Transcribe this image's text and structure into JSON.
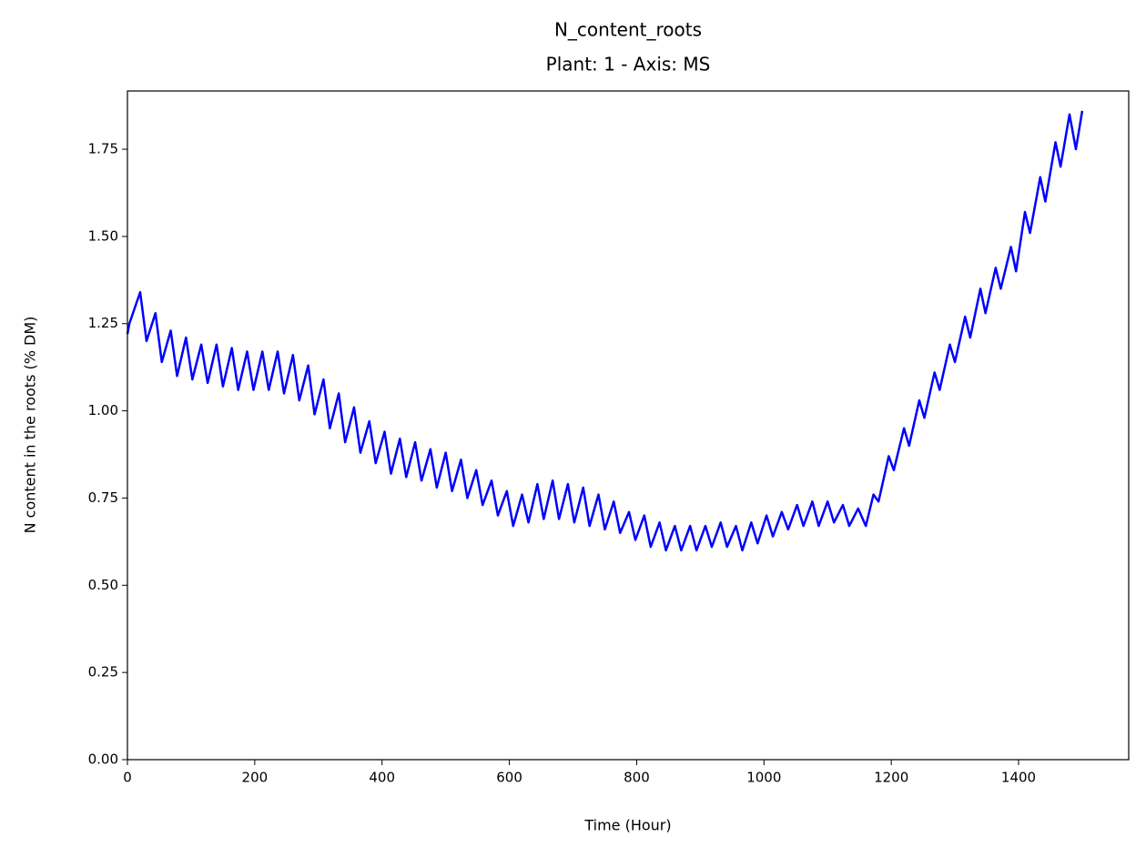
{
  "chart_data": {
    "type": "line",
    "title": "N_content_roots",
    "subtitle": "Plant: 1 - Axis: MS",
    "xlabel": "Time (Hour)",
    "ylabel": "N content in the roots (% DM)",
    "color": "#0000ff",
    "x": [
      0,
      3,
      20,
      30,
      44,
      54,
      68,
      78,
      92,
      102,
      116,
      126,
      140,
      150,
      164,
      174,
      188,
      198,
      212,
      222,
      236,
      246,
      260,
      270,
      284,
      294,
      308,
      318,
      332,
      342,
      356,
      366,
      380,
      390,
      404,
      414,
      428,
      438,
      452,
      462,
      476,
      486,
      500,
      510,
      524,
      534,
      548,
      558,
      572,
      582,
      596,
      606,
      620,
      630,
      644,
      654,
      668,
      678,
      692,
      702,
      716,
      726,
      740,
      750,
      764,
      774,
      788,
      798,
      812,
      822,
      836,
      846,
      860,
      870,
      884,
      894,
      908,
      918,
      932,
      942,
      956,
      966,
      980,
      990,
      1004,
      1014,
      1028,
      1038,
      1052,
      1062,
      1076,
      1086,
      1100,
      1110,
      1124,
      1134,
      1148,
      1160,
      1172,
      1180,
      1196,
      1204,
      1220,
      1228,
      1244,
      1252,
      1268,
      1276,
      1292,
      1300,
      1316,
      1324,
      1340,
      1348,
      1364,
      1372,
      1388,
      1396,
      1410,
      1418,
      1434,
      1442,
      1458,
      1466,
      1480,
      1490,
      1500
    ],
    "values": [
      1.22,
      1.25,
      1.34,
      1.2,
      1.28,
      1.14,
      1.23,
      1.1,
      1.21,
      1.09,
      1.19,
      1.08,
      1.19,
      1.07,
      1.18,
      1.06,
      1.17,
      1.06,
      1.17,
      1.06,
      1.17,
      1.05,
      1.16,
      1.03,
      1.13,
      0.99,
      1.09,
      0.95,
      1.05,
      0.91,
      1.01,
      0.88,
      0.97,
      0.85,
      0.94,
      0.82,
      0.92,
      0.81,
      0.91,
      0.8,
      0.89,
      0.78,
      0.88,
      0.77,
      0.86,
      0.75,
      0.83,
      0.73,
      0.8,
      0.7,
      0.77,
      0.67,
      0.76,
      0.68,
      0.79,
      0.69,
      0.8,
      0.69,
      0.79,
      0.68,
      0.78,
      0.67,
      0.76,
      0.66,
      0.74,
      0.65,
      0.71,
      0.63,
      0.7,
      0.61,
      0.68,
      0.6,
      0.67,
      0.6,
      0.67,
      0.6,
      0.67,
      0.61,
      0.68,
      0.61,
      0.67,
      0.6,
      0.68,
      0.62,
      0.7,
      0.64,
      0.71,
      0.66,
      0.73,
      0.67,
      0.74,
      0.67,
      0.74,
      0.68,
      0.73,
      0.67,
      0.72,
      0.67,
      0.76,
      0.74,
      0.87,
      0.83,
      0.95,
      0.9,
      1.03,
      0.98,
      1.11,
      1.06,
      1.19,
      1.14,
      1.27,
      1.21,
      1.35,
      1.28,
      1.41,
      1.35,
      1.47,
      1.4,
      1.57,
      1.51,
      1.67,
      1.6,
      1.77,
      1.7,
      1.85,
      1.75,
      1.86
    ],
    "xlim": [
      0,
      1573
    ],
    "ylim": [
      0,
      1.917
    ],
    "xticks": [
      0,
      200,
      400,
      600,
      800,
      1000,
      1200,
      1400
    ],
    "yticks": [
      {
        "value": 0,
        "label": "0.00"
      },
      0.25,
      {
        "value": 0.5,
        "label": "0.50"
      },
      0.75,
      {
        "value": 1,
        "label": "1.00"
      },
      1.25,
      {
        "value": 1.5,
        "label": "1.50"
      },
      1.75
    ]
  }
}
